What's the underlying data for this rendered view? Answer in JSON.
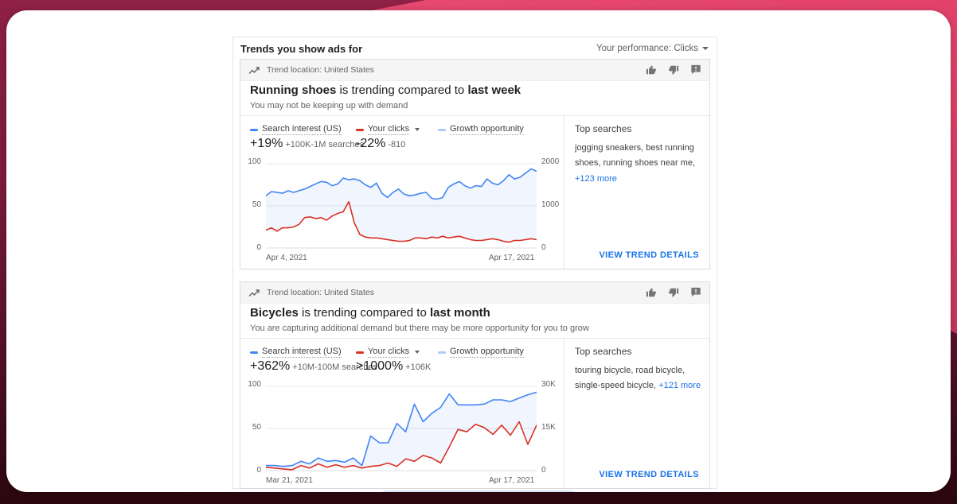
{
  "header": {
    "title": "Trends you show ads for",
    "performance_label": "Your performance: Clicks"
  },
  "cards": [
    {
      "location_label": "Trend location: United States",
      "title": {
        "keyword": "Running shoes",
        "middle": " is trending compared to ",
        "period": "last week"
      },
      "subtitle": "You may not be keeping up with demand",
      "legend": [
        {
          "label": "Search interest (US)",
          "color": "#4285f4"
        },
        {
          "label": "Your clicks",
          "color": "#d93025"
        },
        {
          "label": "Growth opportunity",
          "color": "#aecbfa"
        }
      ],
      "stats": [
        {
          "value": "+19%",
          "detail": "+100K-1M searches"
        },
        {
          "value": "-22%",
          "detail": "-810"
        }
      ],
      "top_searches": {
        "heading": "Top searches",
        "text": "jogging sneakers, best running shoes, running shoes near me, ",
        "more_link": "+123 more"
      },
      "details_link": "VIEW TREND DETAILS"
    },
    {
      "location_label": "Trend location: United States",
      "title": {
        "keyword": "Bicycles",
        "middle": " is trending compared to ",
        "period": "last month"
      },
      "subtitle": "You are capturing additional demand but there may be more opportunity for you to grow",
      "legend": [
        {
          "label": "Search interest (US)",
          "color": "#4285f4"
        },
        {
          "label": "Your clicks",
          "color": "#d93025"
        },
        {
          "label": "Growth opportunity",
          "color": "#aecbfa"
        }
      ],
      "stats": [
        {
          "value": "+362%",
          "detail": "+10M-100M searches"
        },
        {
          "value": ">1000%",
          "detail": "+106K"
        }
      ],
      "top_searches": {
        "heading": "Top searches",
        "text": "touring bicycle, road bicycle, single-speed bicycle, ",
        "more_link": "+121 more"
      },
      "details_link": "VIEW TREND DETAILS"
    }
  ],
  "chart_data": [
    {
      "type": "line",
      "x_start_label": "Apr 4, 2021",
      "x_end_label": "Apr 17, 2021",
      "left_axis_ticks": [
        "100",
        "50",
        "0"
      ],
      "right_axis_ticks": [
        "2000",
        "1000",
        "0"
      ],
      "ylim": [
        0,
        100
      ],
      "grid": true,
      "legend_position": "top",
      "series": [
        {
          "name": "Search interest (US)",
          "color": "#4285f4",
          "values": [
            62,
            67,
            66,
            65,
            68,
            66,
            68,
            70,
            73,
            76,
            79,
            78,
            74,
            76,
            83,
            81,
            82,
            80,
            75,
            72,
            77,
            65,
            60,
            66,
            70,
            64,
            62,
            63,
            65,
            66,
            59,
            58,
            60,
            72,
            76,
            79,
            74,
            71,
            74,
            73,
            82,
            77,
            75,
            80,
            87,
            82,
            84,
            89,
            94,
            91
          ]
        },
        {
          "name": "Your clicks",
          "color": "#d93025",
          "values": [
            21,
            24,
            20,
            24,
            24,
            25,
            28,
            36,
            37,
            35,
            36,
            33,
            38,
            41,
            43,
            55,
            30,
            16,
            13,
            12,
            12,
            11,
            10,
            9,
            8,
            8,
            9,
            12,
            12,
            11,
            13,
            12,
            14,
            12,
            13,
            14,
            12,
            10,
            9,
            9,
            10,
            11,
            10,
            8,
            7,
            9,
            9,
            10,
            11,
            10
          ]
        }
      ],
      "fill_between": {
        "name": "Growth opportunity",
        "color": "rgba(66,133,244,0.08)"
      }
    },
    {
      "type": "line",
      "x_start_label": "Mar 21, 2021",
      "x_end_label": "Apr 17, 2021",
      "left_axis_ticks": [
        "100",
        "50",
        "0"
      ],
      "right_axis_ticks": [
        "30K",
        "15K",
        "0"
      ],
      "ylim": [
        0,
        100
      ],
      "grid": true,
      "legend_position": "top",
      "series": [
        {
          "name": "Search interest (US)",
          "color": "#4285f4",
          "values": [
            6,
            6,
            5,
            6,
            11,
            8,
            15,
            11,
            12,
            10,
            15,
            6,
            41,
            33,
            33,
            56,
            46,
            79,
            58,
            68,
            75,
            91,
            78,
            78,
            78,
            79,
            84,
            84,
            82,
            86,
            90,
            93
          ]
        },
        {
          "name": "Your clicks",
          "color": "#d93025",
          "values": [
            4,
            3,
            2,
            1,
            6,
            3,
            8,
            4,
            7,
            4,
            6,
            3,
            5,
            6,
            9,
            5,
            14,
            11,
            18,
            15,
            9,
            28,
            49,
            46,
            55,
            51,
            43,
            54,
            42,
            58,
            31,
            54
          ]
        }
      ],
      "fill_between": {
        "name": "Growth opportunity",
        "color": "rgba(66,133,244,0.08)"
      }
    }
  ]
}
